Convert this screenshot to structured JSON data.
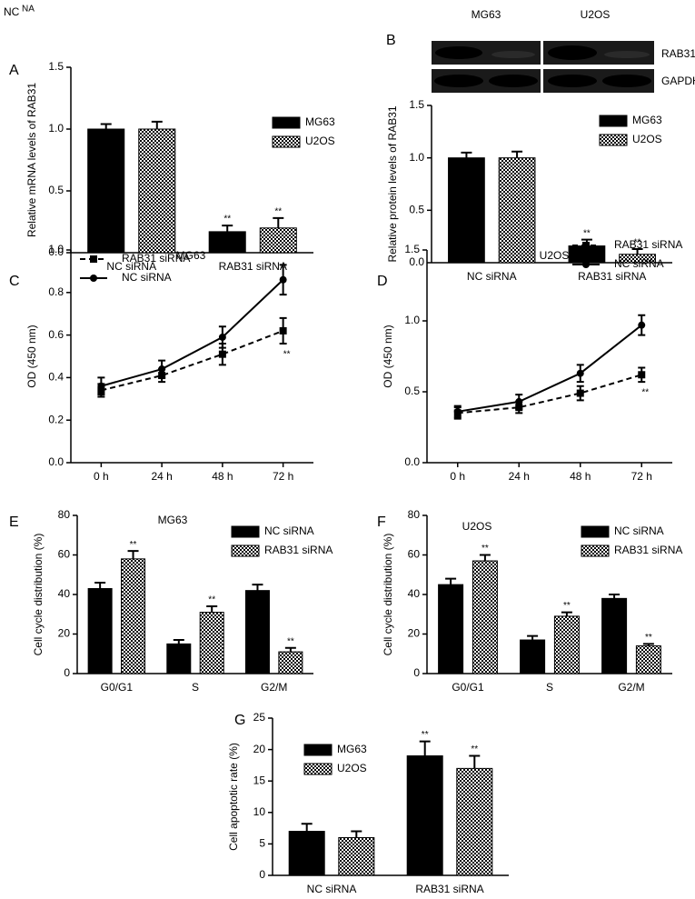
{
  "top_left_text": [
    "NC",
    "NA"
  ],
  "blot": {
    "cell_lines": [
      "MG63",
      "U2OS"
    ],
    "proteins": [
      "RAB31",
      "GAPDH"
    ]
  },
  "chart_data": [
    {
      "type": "bar",
      "label": "A",
      "ylabel": "Relative mRNA levels of RAB31",
      "categories": [
        "NC siRNA",
        "RAB31 siRNA"
      ],
      "series": [
        {
          "name": "MG63",
          "color": "#000000",
          "pattern": "solid",
          "values": [
            1.0,
            0.17
          ],
          "errors": [
            0.04,
            0.05
          ],
          "stars": [
            null,
            "**"
          ]
        },
        {
          "name": "U2OS",
          "color": "#000000",
          "pattern": "checker",
          "values": [
            1.0,
            0.2
          ],
          "errors": [
            0.06,
            0.08
          ],
          "stars": [
            null,
            "**"
          ]
        }
      ],
      "ylim": [
        0,
        1.5
      ],
      "yticks": [
        {
          "value": 0,
          "label": "0.0"
        },
        {
          "value": 0.5,
          "label": "0.5"
        },
        {
          "value": 1,
          "label": "1.0"
        },
        {
          "value": 1.5,
          "label": "1.5"
        }
      ]
    },
    {
      "type": "bar",
      "label": "B",
      "ylabel": "Relative protein levels of RAB31",
      "categories": [
        "NC siRNA",
        "RAB31 siRNA"
      ],
      "series": [
        {
          "name": "MG63",
          "color": "#000000",
          "pattern": "solid",
          "values": [
            1.0,
            0.16
          ],
          "errors": [
            0.05,
            0.06
          ],
          "stars": [
            null,
            "**"
          ]
        },
        {
          "name": "U2OS",
          "color": "#000000",
          "pattern": "checker",
          "values": [
            1.0,
            0.08
          ],
          "errors": [
            0.06,
            0.05
          ],
          "stars": [
            null,
            "**"
          ]
        }
      ],
      "ylim": [
        0,
        1.5
      ],
      "yticks": [
        {
          "value": 0,
          "label": "0.0"
        },
        {
          "value": 0.5,
          "label": "0.5"
        },
        {
          "value": 1,
          "label": "1.0"
        },
        {
          "value": 1.5,
          "label": "1.5"
        }
      ]
    },
    {
      "type": "line",
      "label": "C",
      "title": "MG63",
      "ylabel": "OD (450 nm)",
      "categories": [
        "0 h",
        "24 h",
        "48 h",
        "72 h"
      ],
      "series": [
        {
          "name": "RAB31 siRNA",
          "color": "#000000",
          "style": "dashed",
          "marker": "square",
          "values": [
            0.34,
            0.41,
            0.51,
            0.62
          ],
          "errors": [
            0.03,
            0.03,
            0.05,
            0.06
          ],
          "stars": [
            null,
            null,
            null,
            "**"
          ]
        },
        {
          "name": "NC siRNA",
          "color": "#000000",
          "style": "solid",
          "marker": "circle",
          "values": [
            0.36,
            0.44,
            0.59,
            0.86
          ],
          "errors": [
            0.04,
            0.04,
            0.05,
            0.07
          ],
          "stars": [
            null,
            null,
            null,
            null
          ]
        }
      ],
      "ylim": [
        0,
        1.0
      ],
      "yticks": [
        {
          "value": 0,
          "label": "0.0"
        },
        {
          "value": 0.2,
          "label": "0.2"
        },
        {
          "value": 0.4,
          "label": "0.4"
        },
        {
          "value": 0.6,
          "label": "0.6"
        },
        {
          "value": 0.8,
          "label": "0.8"
        },
        {
          "value": 1,
          "label": "1.0"
        }
      ]
    },
    {
      "type": "line",
      "label": "D",
      "title": "U2OS",
      "ylabel": "OD (450 nm)",
      "categories": [
        "0 h",
        "24 h",
        "48 h",
        "72 h"
      ],
      "series": [
        {
          "name": "RAB31 siRNA",
          "color": "#000000",
          "style": "dashed",
          "marker": "square",
          "values": [
            0.35,
            0.39,
            0.49,
            0.62
          ],
          "errors": [
            0.04,
            0.04,
            0.05,
            0.05
          ],
          "stars": [
            null,
            null,
            null,
            "**"
          ]
        },
        {
          "name": "NC siRNA",
          "color": "#000000",
          "style": "solid",
          "marker": "circle",
          "values": [
            0.36,
            0.43,
            0.63,
            0.97
          ],
          "errors": [
            0.04,
            0.05,
            0.06,
            0.07
          ],
          "stars": [
            null,
            null,
            null,
            null
          ]
        }
      ],
      "ylim": [
        0,
        1.5
      ],
      "yticks": [
        {
          "value": 0,
          "label": "0.0"
        },
        {
          "value": 0.5,
          "label": "0.5"
        },
        {
          "value": 1,
          "label": "1.0"
        },
        {
          "value": 1.5,
          "label": "1.5"
        }
      ]
    },
    {
      "type": "bar",
      "label": "E",
      "title": "MG63",
      "ylabel": "Cell cycle distribution (%)",
      "categories": [
        "G0/G1",
        "S",
        "G2/M"
      ],
      "series": [
        {
          "name": "NC siRNA",
          "color": "#000000",
          "pattern": "solid",
          "values": [
            43,
            15,
            42
          ],
          "errors": [
            3,
            2,
            3
          ],
          "stars": [
            null,
            null,
            null
          ]
        },
        {
          "name": "RAB31 siRNA",
          "color": "#000000",
          "pattern": "checker",
          "values": [
            58,
            31,
            11
          ],
          "errors": [
            4,
            3,
            2
          ],
          "stars": [
            "**",
            "**",
            "**"
          ]
        }
      ],
      "ylim": [
        0,
        80
      ],
      "yticks": [
        0,
        20,
        40,
        60,
        80
      ]
    },
    {
      "type": "bar",
      "label": "F",
      "title": "U2OS",
      "ylabel": "Cell cycle distribution (%)",
      "categories": [
        "G0/G1",
        "S",
        "G2/M"
      ],
      "series": [
        {
          "name": "NC siRNA",
          "color": "#000000",
          "pattern": "solid",
          "values": [
            45,
            17,
            38
          ],
          "errors": [
            3,
            2,
            2
          ],
          "stars": [
            null,
            null,
            null
          ]
        },
        {
          "name": "RAB31 siRNA",
          "color": "#000000",
          "pattern": "checker",
          "values": [
            57,
            29,
            14
          ],
          "errors": [
            3,
            2,
            1
          ],
          "stars": [
            "**",
            "**",
            "**"
          ]
        }
      ],
      "ylim": [
        0,
        80
      ],
      "yticks": [
        0,
        20,
        40,
        60,
        80
      ]
    },
    {
      "type": "bar",
      "label": "G",
      "ylabel": "Cell apoptotic rate (%)",
      "categories": [
        "NC siRNA",
        "RAB31 siRNA"
      ],
      "series": [
        {
          "name": "MG63",
          "color": "#000000",
          "pattern": "solid",
          "values": [
            7,
            19
          ],
          "errors": [
            1.2,
            2.3
          ],
          "stars": [
            null,
            "**"
          ]
        },
        {
          "name": "U2OS",
          "color": "#000000",
          "pattern": "checker",
          "values": [
            6,
            17
          ],
          "errors": [
            1,
            2
          ],
          "stars": [
            null,
            "**"
          ]
        }
      ],
      "ylim": [
        0,
        25
      ],
      "yticks": [
        0,
        5,
        10,
        15,
        20,
        25
      ]
    }
  ]
}
